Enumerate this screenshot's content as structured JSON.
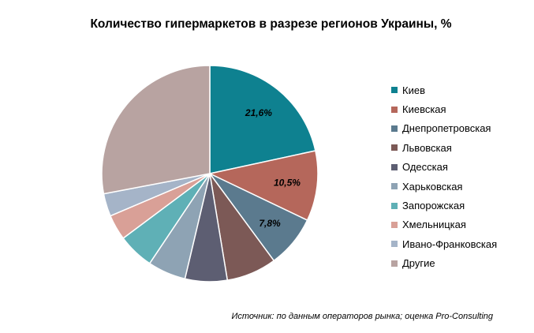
{
  "title": "Количество гипермаркетов в разрезе регионов Украины, %",
  "source": "Источник: по данным операторов рынка; оценка Pro-Consulting",
  "chart_data": {
    "type": "pie",
    "title": "Количество гипермаркетов в разрезе регионов Украины, %",
    "categories": [
      "Киев",
      "Киевская",
      "Днепропетровская",
      "Львовская",
      "Одесская",
      "Харьковская",
      "Запорожская",
      "Хмельницкая",
      "Ивано-Франковская",
      "Другие"
    ],
    "values": [
      21.6,
      10.5,
      7.8,
      7.5,
      6.3,
      5.7,
      5.4,
      3.8,
      3.4,
      28.0
    ],
    "data_labels": [
      "21,6%",
      "10,5%",
      "7,8%",
      "",
      "",
      "",
      "",
      "",
      "",
      ""
    ],
    "colors": [
      "#0e8190",
      "#b5675b",
      "#5b7a8e",
      "#7c5956",
      "#5d5e72",
      "#8ea3b4",
      "#5fb0b6",
      "#d9a097",
      "#a5b4c8",
      "#b8a3a1"
    ],
    "legend_position": "right",
    "start_angle_deg": 0,
    "direction": "clockwise"
  }
}
